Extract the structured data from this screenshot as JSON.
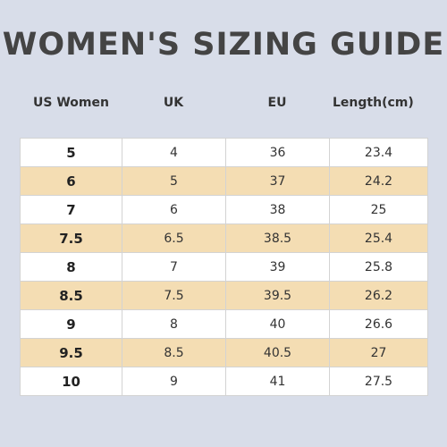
{
  "title": "WOMEN'S SIZING GUIDE",
  "columns": [
    "US Women",
    "UK",
    "EU",
    "Length(cm)"
  ],
  "rows": [
    [
      "5",
      "4",
      "36",
      "23.4"
    ],
    [
      "6",
      "5",
      "37",
      "24.2"
    ],
    [
      "7",
      "6",
      "38",
      "25"
    ],
    [
      "7.5",
      "6.5",
      "38.5",
      "25.4"
    ],
    [
      "8",
      "7",
      "39",
      "25.8"
    ],
    [
      "8.5",
      "7.5",
      "39.5",
      "26.2"
    ],
    [
      "9",
      "8",
      "40",
      "26.6"
    ],
    [
      "9.5",
      "8.5",
      "40.5",
      "27"
    ],
    [
      "10",
      "9",
      "41",
      "27.5"
    ]
  ],
  "colors": {
    "background": "#d8dde9",
    "row_alt": "#f4ddb3",
    "row_plain": "#ffffff",
    "title": "#444444"
  }
}
